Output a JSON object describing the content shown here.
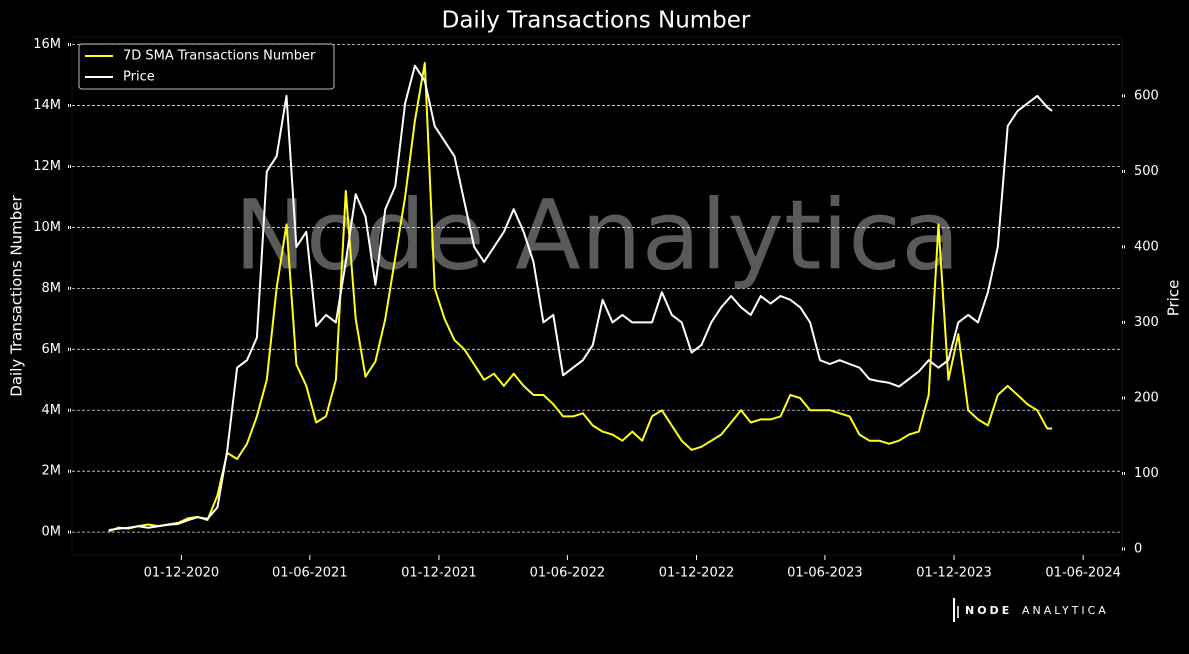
{
  "chart_data": {
    "type": "line",
    "title": "Daily Transactions Number",
    "watermark": "Node Analytica",
    "logo": [
      "NODE",
      "ANALYTICA"
    ],
    "ylabel": "Daily Transactions Number",
    "y2label": "Price",
    "legend": "upper left",
    "grid": true,
    "xlim": [
      "2020-06-29",
      "2024-07-26"
    ],
    "xticks": [
      {
        "value": "2020-12-01",
        "label": "01-12-2020"
      },
      {
        "value": "2021-06-01",
        "label": "01-06-2021"
      },
      {
        "value": "2021-12-01",
        "label": "01-12-2021"
      },
      {
        "value": "2022-06-01",
        "label": "01-06-2022"
      },
      {
        "value": "2022-12-01",
        "label": "01-12-2022"
      },
      {
        "value": "2023-06-01",
        "label": "01-06-2023"
      },
      {
        "value": "2023-12-01",
        "label": "01-12-2023"
      },
      {
        "value": "2024-06-01",
        "label": "01-06-2024"
      }
    ],
    "ylim": [
      -0.75,
      16.25
    ],
    "yticks": [
      {
        "value": 0,
        "label": "0M"
      },
      {
        "value": 2,
        "label": "2M"
      },
      {
        "value": 4,
        "label": "4M"
      },
      {
        "value": 6,
        "label": "6M"
      },
      {
        "value": 8,
        "label": "8M"
      },
      {
        "value": 10,
        "label": "10M"
      },
      {
        "value": 12,
        "label": "12M"
      },
      {
        "value": 14,
        "label": "14M"
      },
      {
        "value": 16,
        "label": "16M"
      }
    ],
    "y2lim": [
      -8,
      678
    ],
    "y2ticks": [
      0,
      100,
      200,
      300,
      400,
      500,
      600
    ],
    "x": [
      "2020-08-20",
      "2020-09-03",
      "2020-09-17",
      "2020-10-01",
      "2020-10-15",
      "2020-10-29",
      "2020-11-12",
      "2020-11-26",
      "2020-12-10",
      "2020-12-24",
      "2021-01-07",
      "2021-01-21",
      "2021-02-04",
      "2021-02-18",
      "2021-03-04",
      "2021-03-18",
      "2021-04-01",
      "2021-04-15",
      "2021-04-29",
      "2021-05-13",
      "2021-05-27",
      "2021-06-10",
      "2021-06-24",
      "2021-07-08",
      "2021-07-22",
      "2021-08-05",
      "2021-08-19",
      "2021-09-02",
      "2021-09-16",
      "2021-09-30",
      "2021-10-14",
      "2021-10-28",
      "2021-11-11",
      "2021-11-25",
      "2021-12-09",
      "2021-12-23",
      "2022-01-06",
      "2022-01-20",
      "2022-02-03",
      "2022-02-17",
      "2022-03-03",
      "2022-03-17",
      "2022-03-31",
      "2022-04-14",
      "2022-04-28",
      "2022-05-12",
      "2022-05-26",
      "2022-06-09",
      "2022-06-23",
      "2022-07-07",
      "2022-07-21",
      "2022-08-04",
      "2022-08-18",
      "2022-09-01",
      "2022-09-15",
      "2022-09-29",
      "2022-10-13",
      "2022-10-27",
      "2022-11-10",
      "2022-11-24",
      "2022-12-08",
      "2022-12-22",
      "2023-01-05",
      "2023-01-19",
      "2023-02-02",
      "2023-02-16",
      "2023-03-02",
      "2023-03-16",
      "2023-03-30",
      "2023-04-13",
      "2023-04-27",
      "2023-05-11",
      "2023-05-25",
      "2023-06-08",
      "2023-06-22",
      "2023-07-06",
      "2023-07-20",
      "2023-08-03",
      "2023-08-17",
      "2023-08-31",
      "2023-09-14",
      "2023-09-28",
      "2023-10-12",
      "2023-10-26",
      "2023-11-09",
      "2023-11-23",
      "2023-12-07",
      "2023-12-21",
      "2024-01-04",
      "2024-01-18",
      "2024-02-01",
      "2024-02-15",
      "2024-02-29",
      "2024-03-14",
      "2024-03-28",
      "2024-04-11",
      "2024-04-18"
    ],
    "series": [
      {
        "name": "7D SMA Transactions Number",
        "color": "#ffff1a",
        "values": [
          0.02,
          0.15,
          0.12,
          0.2,
          0.25,
          0.2,
          0.25,
          0.3,
          0.45,
          0.5,
          0.4,
          1.2,
          2.6,
          2.4,
          2.9,
          3.8,
          5.0,
          8.0,
          10.1,
          5.5,
          4.8,
          3.6,
          3.8,
          5.0,
          11.2,
          7.0,
          5.1,
          5.6,
          7.0,
          9.0,
          11.0,
          13.5,
          15.4,
          8.0,
          7.0,
          6.3,
          6.0,
          5.5,
          5.0,
          5.2,
          4.8,
          5.2,
          4.8,
          4.5,
          4.5,
          4.2,
          3.8,
          3.8,
          3.9,
          3.5,
          3.3,
          3.2,
          3.0,
          3.3,
          3.0,
          3.8,
          4.0,
          3.5,
          3.0,
          2.7,
          2.8,
          3.0,
          3.2,
          3.6,
          4.0,
          3.6,
          3.7,
          3.7,
          3.8,
          4.5,
          4.4,
          4.0,
          4.0,
          4.0,
          3.9,
          3.8,
          3.2,
          3.0,
          3.0,
          2.9,
          3.0,
          3.2,
          3.3,
          4.5,
          10.1,
          5.0,
          6.5,
          4.0,
          3.7,
          3.5,
          4.5,
          4.8,
          4.5,
          4.2,
          4.0,
          3.4,
          3.4
        ]
      },
      {
        "name": "Price",
        "color": "#ffffff",
        "axis": "y2",
        "values": [
          25,
          27,
          28,
          30,
          28,
          30,
          32,
          33,
          38,
          42,
          40,
          55,
          130,
          240,
          250,
          280,
          500,
          520,
          600,
          400,
          420,
          295,
          310,
          300,
          380,
          470,
          440,
          350,
          450,
          480,
          590,
          640,
          620,
          560,
          540,
          520,
          460,
          400,
          380,
          400,
          420,
          450,
          420,
          380,
          300,
          310,
          230,
          240,
          250,
          270,
          330,
          300,
          310,
          300,
          300,
          300,
          340,
          310,
          300,
          260,
          270,
          300,
          320,
          335,
          320,
          310,
          335,
          325,
          335,
          330,
          320,
          300,
          250,
          245,
          250,
          245,
          240,
          225,
          222,
          220,
          215,
          225,
          235,
          250,
          240,
          250,
          300,
          310,
          300,
          340,
          400,
          560,
          580,
          590,
          600,
          585,
          580
        ]
      }
    ]
  }
}
